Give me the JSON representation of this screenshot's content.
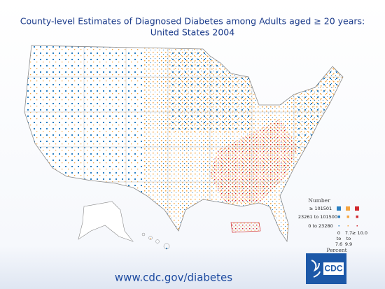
{
  "header": {
    "title_line1": "County-level Estimates of Diagnosed Diabetes among Adults aged ≥ 20 years:",
    "title_line2": "United States 2004"
  },
  "legend": {
    "size_title": "Number",
    "size_rows": [
      "≥ 101501",
      "23261 to 101500",
      "0 to 23280"
    ],
    "color_title": "Percent",
    "color_columns": [
      [
        "0",
        "to",
        "7.6"
      ],
      [
        "7.7",
        "to",
        "9.9"
      ],
      [
        "≥ 10.0"
      ]
    ]
  },
  "footer": {
    "url": "www.cdc.gov/diabetes",
    "logo": "CDC"
  }
}
